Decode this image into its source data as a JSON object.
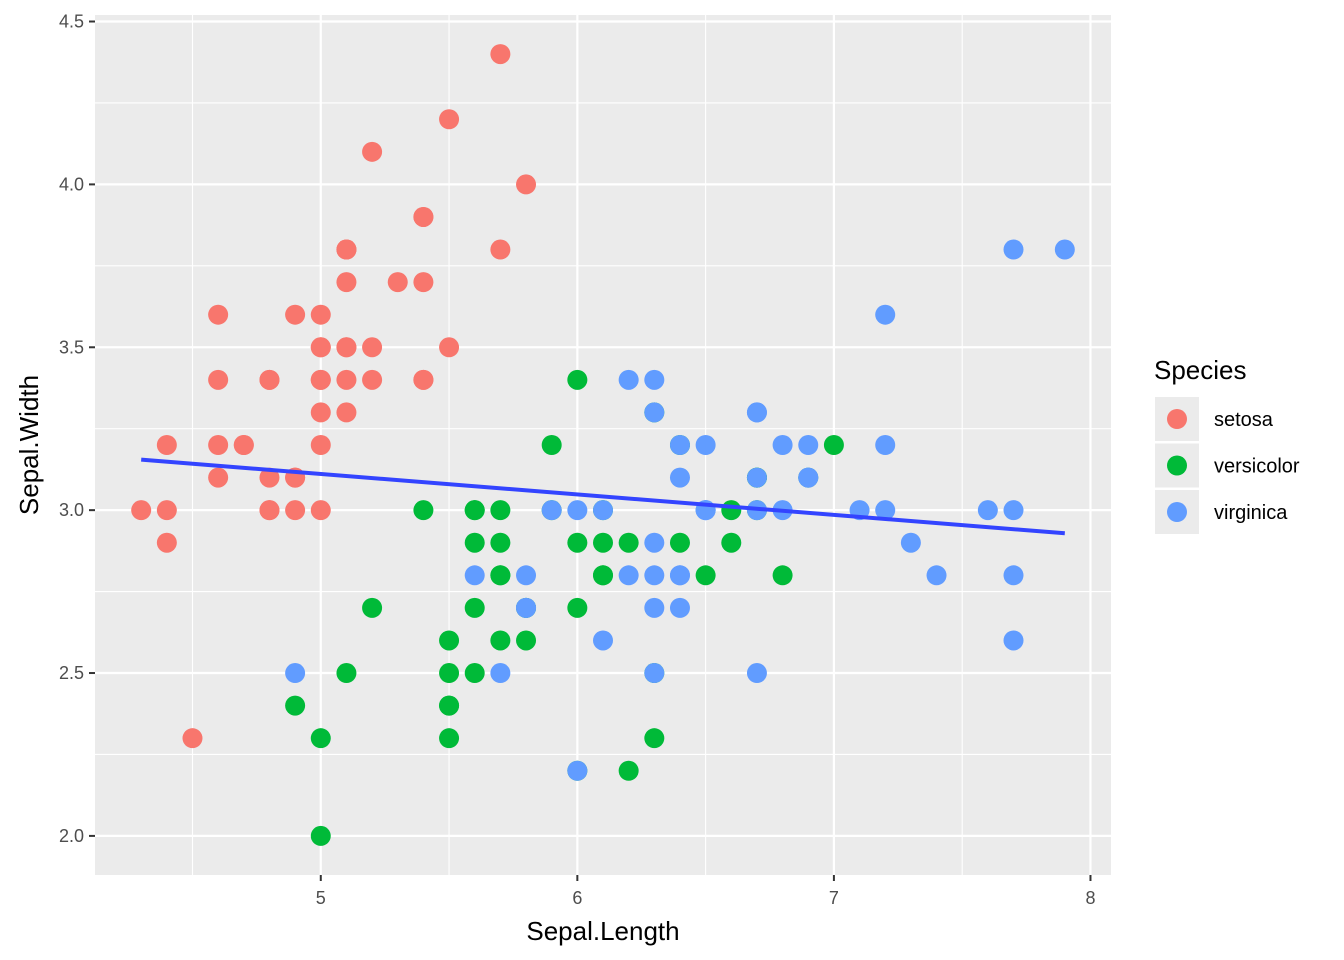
{
  "chart_data": {
    "type": "scatter",
    "xlabel": "Sepal.Length",
    "ylabel": "Sepal.Width",
    "xlim": [
      4.12,
      8.08
    ],
    "ylim": [
      1.88,
      4.52
    ],
    "x_ticks": [
      5,
      6,
      7,
      8
    ],
    "x_tick_labels": [
      "5",
      "6",
      "7",
      "8"
    ],
    "y_ticks": [
      2.0,
      2.5,
      3.0,
      3.5,
      4.0,
      4.5
    ],
    "y_tick_labels": [
      "2.0",
      "2.5",
      "3.0",
      "3.5",
      "4.0",
      "4.5"
    ],
    "grid": true,
    "legend": {
      "title": "Species",
      "placement": "right",
      "entries": [
        "setosa",
        "versicolor",
        "virginica"
      ]
    },
    "colors": {
      "setosa": "#F8766D",
      "versicolor": "#00BA38",
      "virginica": "#619CFF",
      "trend": "#3344FF",
      "panel": "#EBEBEB",
      "grid": "#FFFFFF"
    },
    "series": [
      {
        "name": "setosa",
        "points": [
          [
            5.1,
            3.5
          ],
          [
            4.9,
            3.0
          ],
          [
            4.7,
            3.2
          ],
          [
            4.6,
            3.1
          ],
          [
            5.0,
            3.6
          ],
          [
            5.4,
            3.9
          ],
          [
            4.6,
            3.4
          ],
          [
            5.0,
            3.4
          ],
          [
            4.4,
            2.9
          ],
          [
            4.9,
            3.1
          ],
          [
            5.4,
            3.7
          ],
          [
            4.8,
            3.4
          ],
          [
            4.8,
            3.0
          ],
          [
            4.3,
            3.0
          ],
          [
            5.8,
            4.0
          ],
          [
            5.7,
            4.4
          ],
          [
            5.4,
            3.9
          ],
          [
            5.1,
            3.5
          ],
          [
            5.7,
            3.8
          ],
          [
            5.1,
            3.8
          ],
          [
            5.4,
            3.4
          ],
          [
            5.1,
            3.7
          ],
          [
            4.6,
            3.6
          ],
          [
            5.1,
            3.3
          ],
          [
            4.8,
            3.4
          ],
          [
            5.0,
            3.0
          ],
          [
            5.0,
            3.4
          ],
          [
            5.2,
            3.5
          ],
          [
            5.2,
            3.4
          ],
          [
            4.7,
            3.2
          ],
          [
            4.8,
            3.1
          ],
          [
            5.4,
            3.4
          ],
          [
            5.2,
            4.1
          ],
          [
            5.5,
            4.2
          ],
          [
            4.9,
            3.1
          ],
          [
            5.0,
            3.2
          ],
          [
            5.5,
            3.5
          ],
          [
            4.9,
            3.6
          ],
          [
            4.4,
            3.0
          ],
          [
            5.1,
            3.4
          ],
          [
            5.0,
            3.5
          ],
          [
            4.5,
            2.3
          ],
          [
            4.4,
            3.2
          ],
          [
            5.0,
            3.5
          ],
          [
            5.1,
            3.8
          ],
          [
            4.8,
            3.0
          ],
          [
            5.1,
            3.8
          ],
          [
            4.6,
            3.2
          ],
          [
            5.3,
            3.7
          ],
          [
            5.0,
            3.3
          ]
        ]
      },
      {
        "name": "versicolor",
        "points": [
          [
            7.0,
            3.2
          ],
          [
            6.4,
            3.2
          ],
          [
            6.9,
            3.1
          ],
          [
            5.5,
            2.3
          ],
          [
            6.5,
            2.8
          ],
          [
            5.7,
            2.8
          ],
          [
            6.3,
            3.3
          ],
          [
            4.9,
            2.4
          ],
          [
            6.6,
            2.9
          ],
          [
            5.2,
            2.7
          ],
          [
            5.0,
            2.0
          ],
          [
            5.9,
            3.0
          ],
          [
            6.0,
            2.2
          ],
          [
            6.1,
            2.9
          ],
          [
            5.6,
            2.9
          ],
          [
            6.7,
            3.1
          ],
          [
            5.6,
            3.0
          ],
          [
            5.8,
            2.7
          ],
          [
            6.2,
            2.2
          ],
          [
            5.6,
            2.5
          ],
          [
            5.9,
            3.2
          ],
          [
            6.1,
            2.8
          ],
          [
            6.3,
            2.5
          ],
          [
            6.1,
            2.8
          ],
          [
            6.4,
            2.9
          ],
          [
            6.6,
            3.0
          ],
          [
            6.8,
            2.8
          ],
          [
            6.7,
            3.0
          ],
          [
            6.0,
            2.9
          ],
          [
            5.7,
            2.6
          ],
          [
            5.5,
            2.4
          ],
          [
            5.5,
            2.4
          ],
          [
            5.8,
            2.7
          ],
          [
            6.0,
            2.7
          ],
          [
            5.4,
            3.0
          ],
          [
            6.0,
            3.4
          ],
          [
            6.7,
            3.1
          ],
          [
            6.3,
            2.3
          ],
          [
            5.6,
            3.0
          ],
          [
            5.5,
            2.5
          ],
          [
            5.5,
            2.6
          ],
          [
            6.1,
            3.0
          ],
          [
            5.8,
            2.6
          ],
          [
            5.0,
            2.3
          ],
          [
            5.6,
            2.7
          ],
          [
            5.7,
            3.0
          ],
          [
            5.7,
            2.9
          ],
          [
            6.2,
            2.9
          ],
          [
            5.1,
            2.5
          ],
          [
            5.7,
            2.8
          ]
        ]
      },
      {
        "name": "virginica",
        "points": [
          [
            6.3,
            3.3
          ],
          [
            5.8,
            2.7
          ],
          [
            7.1,
            3.0
          ],
          [
            6.3,
            2.9
          ],
          [
            6.5,
            3.0
          ],
          [
            7.6,
            3.0
          ],
          [
            4.9,
            2.5
          ],
          [
            7.3,
            2.9
          ],
          [
            6.7,
            2.5
          ],
          [
            7.2,
            3.6
          ],
          [
            6.5,
            3.2
          ],
          [
            6.4,
            2.7
          ],
          [
            6.8,
            3.0
          ],
          [
            5.7,
            2.5
          ],
          [
            5.8,
            2.8
          ],
          [
            6.4,
            3.2
          ],
          [
            6.5,
            3.0
          ],
          [
            7.7,
            3.8
          ],
          [
            7.7,
            2.6
          ],
          [
            6.0,
            2.2
          ],
          [
            6.9,
            3.2
          ],
          [
            5.6,
            2.8
          ],
          [
            7.7,
            2.8
          ],
          [
            6.3,
            2.7
          ],
          [
            6.7,
            3.3
          ],
          [
            7.2,
            3.2
          ],
          [
            6.2,
            2.8
          ],
          [
            6.1,
            3.0
          ],
          [
            6.4,
            2.8
          ],
          [
            7.2,
            3.0
          ],
          [
            7.4,
            2.8
          ],
          [
            7.9,
            3.8
          ],
          [
            6.4,
            2.8
          ],
          [
            6.3,
            2.8
          ],
          [
            6.1,
            2.6
          ],
          [
            7.7,
            3.0
          ],
          [
            6.3,
            3.4
          ],
          [
            6.4,
            3.1
          ],
          [
            6.0,
            3.0
          ],
          [
            6.9,
            3.1
          ],
          [
            6.7,
            3.1
          ],
          [
            6.9,
            3.1
          ],
          [
            5.8,
            2.7
          ],
          [
            6.8,
            3.2
          ],
          [
            6.7,
            3.3
          ],
          [
            6.7,
            3.0
          ],
          [
            6.3,
            2.5
          ],
          [
            6.5,
            3.0
          ],
          [
            6.2,
            3.4
          ],
          [
            5.9,
            3.0
          ]
        ]
      }
    ],
    "trend_line": {
      "x": [
        4.3,
        7.9
      ],
      "y": [
        3.155,
        2.929
      ]
    }
  }
}
